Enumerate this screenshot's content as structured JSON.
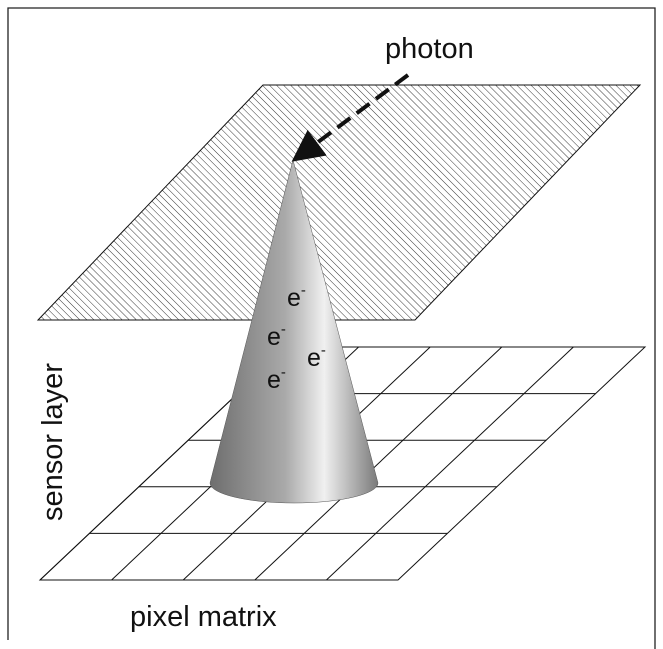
{
  "labels": {
    "photon": "photon",
    "sensor_layer": "sensor layer",
    "pixel_matrix": "pixel matrix"
  },
  "electrons": [
    {
      "symbol": "e",
      "charge": "-"
    },
    {
      "symbol": "e",
      "charge": "-"
    },
    {
      "symbol": "e",
      "charge": "-"
    },
    {
      "symbol": "e",
      "charge": "-"
    }
  ]
}
